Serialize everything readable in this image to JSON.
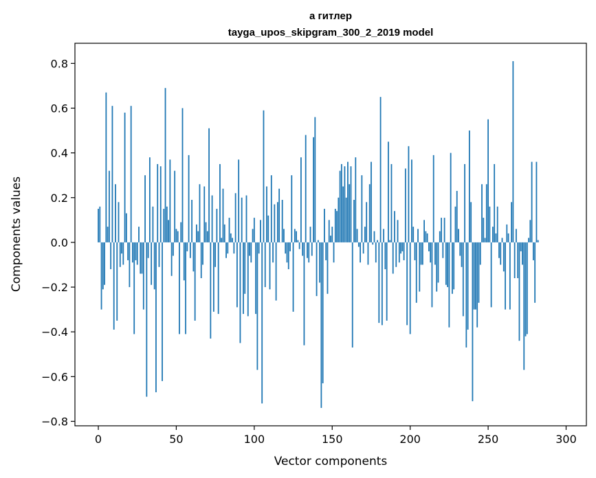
{
  "chart_data": {
    "type": "bar",
    "title": "а гитлер",
    "subtitle": "tayga_upos_skipgram_300_2_2019 model",
    "xlabel": "Vector components",
    "ylabel": "Components values",
    "xlim": [
      -15,
      313
    ],
    "ylim": [
      -0.82,
      0.89
    ],
    "xticks": [
      0,
      50,
      100,
      150,
      200,
      250,
      300
    ],
    "xtick_labels": [
      "0",
      "50",
      "100",
      "150",
      "200",
      "250",
      "300"
    ],
    "yticks": [
      -0.8,
      -0.6,
      -0.4,
      -0.2,
      0.0,
      0.2,
      0.4,
      0.6,
      0.8
    ],
    "ytick_labels": [
      "−0.8",
      "−0.6",
      "−0.4",
      "−0.2",
      "0.0",
      "0.2",
      "0.4",
      "0.6",
      "0.8"
    ],
    "bar_color": "#1f77b4",
    "grid": false,
    "values": [
      0.15,
      0.16,
      -0.3,
      -0.21,
      -0.19,
      0.67,
      0.07,
      0.32,
      -0.12,
      0.61,
      -0.39,
      0.26,
      -0.35,
      0.18,
      -0.11,
      -0.05,
      -0.1,
      0.58,
      0.13,
      -0.08,
      -0.2,
      0.61,
      -0.09,
      -0.41,
      -0.08,
      -0.1,
      0.07,
      -0.14,
      -0.14,
      -0.3,
      0.3,
      -0.69,
      -0.07,
      0.38,
      -0.19,
      0.16,
      -0.21,
      -0.67,
      0.35,
      -0.11,
      0.34,
      -0.62,
      0.15,
      0.69,
      0.16,
      0.1,
      0.37,
      -0.15,
      -0.06,
      0.32,
      0.06,
      0.05,
      -0.41,
      0.09,
      0.6,
      -0.17,
      -0.41,
      -0.04,
      0.39,
      -0.07,
      0.19,
      -0.13,
      -0.35,
      0.08,
      0.05,
      0.26,
      -0.16,
      -0.1,
      0.25,
      0.09,
      0.05,
      0.51,
      -0.43,
      0.21,
      -0.31,
      -0.11,
      0.15,
      -0.32,
      0.35,
      0.02,
      0.24,
      0.08,
      -0.07,
      -0.05,
      0.11,
      0.04,
      0.02,
      -0.05,
      0.22,
      -0.29,
      0.37,
      -0.45,
      0.2,
      -0.32,
      -0.23,
      0.21,
      -0.33,
      -0.06,
      -0.09,
      0.06,
      0.11,
      -0.32,
      -0.57,
      -0.05,
      0.1,
      -0.72,
      0.59,
      -0.2,
      0.25,
      0.12,
      -0.21,
      0.3,
      -0.09,
      0.17,
      -0.26,
      0.18,
      0.24,
      0.0,
      0.19,
      0.06,
      -0.05,
      -0.09,
      -0.12,
      -0.04,
      0.3,
      -0.31,
      0.06,
      0.05,
      0.01,
      -0.03,
      0.38,
      -0.06,
      -0.46,
      0.48,
      -0.07,
      -0.09,
      0.07,
      -0.06,
      0.47,
      0.56,
      -0.24,
      0.01,
      -0.18,
      -0.74,
      -0.63,
      0.15,
      -0.08,
      -0.23,
      0.1,
      0.03,
      0.07,
      -0.09,
      0.15,
      0.14,
      0.2,
      0.32,
      0.35,
      0.25,
      0.34,
      0.2,
      0.36,
      0.26,
      0.34,
      -0.47,
      0.19,
      0.38,
      0.06,
      -0.02,
      -0.09,
      0.3,
      -0.05,
      0.07,
      0.18,
      -0.1,
      0.26,
      0.36,
      -0.01,
      0.05,
      -0.09,
      0.01,
      -0.36,
      0.65,
      -0.37,
      0.06,
      -0.12,
      -0.35,
      0.45,
      0.01,
      0.35,
      -0.14,
      0.14,
      -0.11,
      0.1,
      -0.09,
      -0.05,
      -0.04,
      -0.08,
      0.33,
      -0.37,
      0.43,
      -0.41,
      0.37,
      0.07,
      -0.08,
      -0.27,
      0.06,
      -0.22,
      -0.1,
      -0.1,
      0.1,
      0.05,
      0.04,
      -0.04,
      -0.09,
      -0.29,
      0.39,
      -0.1,
      -0.22,
      -0.18,
      0.05,
      0.11,
      -0.07,
      0.11,
      -0.19,
      -0.2,
      -0.38,
      0.4,
      -0.23,
      -0.21,
      0.16,
      0.23,
      0.06,
      -0.06,
      -0.11,
      -0.33,
      0.35,
      -0.47,
      -0.39,
      0.5,
      0.18,
      -0.71,
      -0.3,
      -0.3,
      -0.38,
      -0.27,
      -0.1,
      0.26,
      0.11,
      0.02,
      0.26,
      0.55,
      0.16,
      -0.29,
      0.07,
      0.35,
      0.04,
      0.16,
      -0.07,
      -0.1,
      0.02,
      -0.13,
      -0.3,
      0.08,
      0.04,
      -0.3,
      0.18,
      0.81,
      -0.16,
      0.06,
      -0.16,
      -0.44,
      -0.04,
      -0.1,
      -0.57,
      -0.42,
      -0.41,
      0.02,
      0.1,
      0.36,
      -0.08,
      -0.27,
      0.36,
      0.01
    ]
  }
}
